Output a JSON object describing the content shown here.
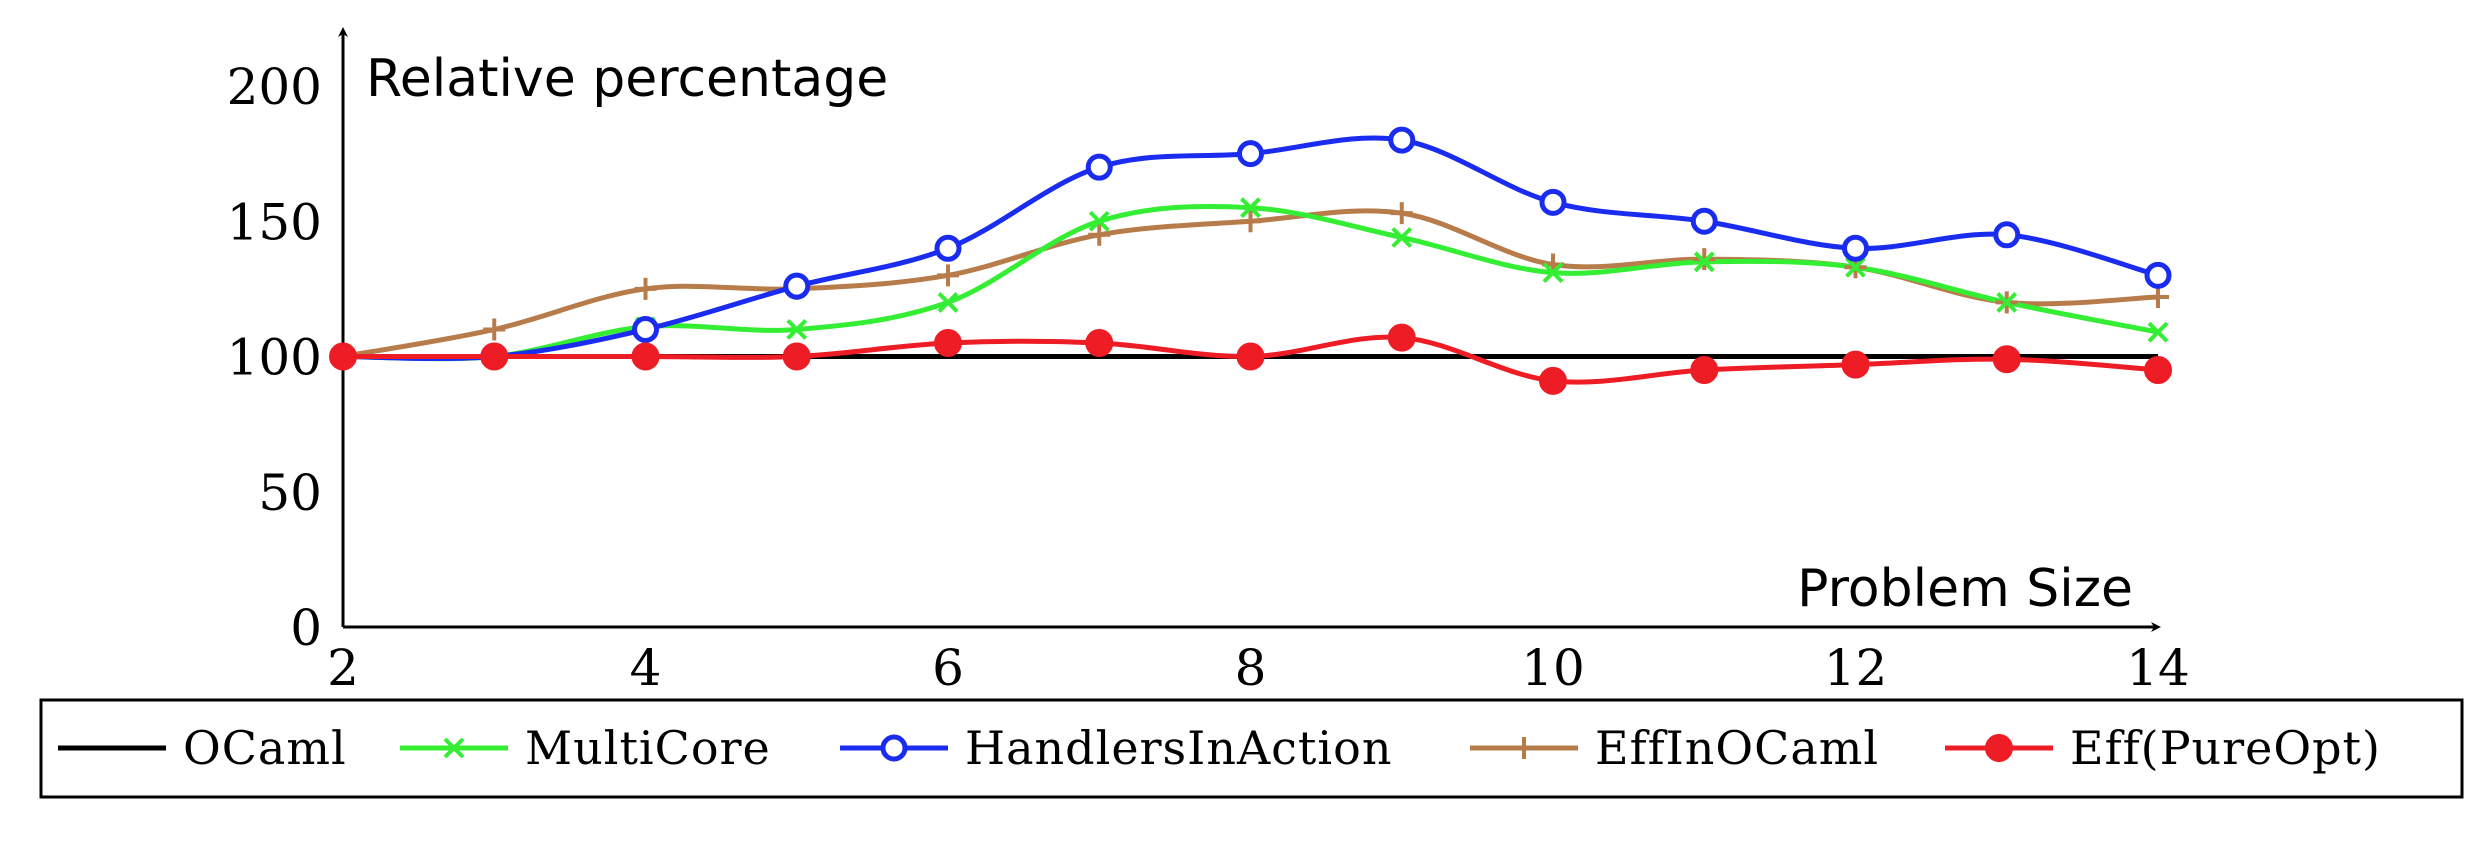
{
  "chart_data": {
    "type": "line",
    "xlabel": "Problem Size",
    "ylabel": "Relative percentage",
    "xlim": [
      2,
      14
    ],
    "ylim": [
      0,
      200
    ],
    "x_ticks": [
      "2",
      "4",
      "6",
      "8",
      "10",
      "12",
      "14"
    ],
    "y_ticks": [
      "0",
      "50",
      "100",
      "150",
      "200"
    ],
    "legend_position": "bottom",
    "series": [
      {
        "name": "OCaml",
        "color": "#000000",
        "marker": "none",
        "x": [
          2,
          3,
          4,
          5,
          6,
          7,
          8,
          9,
          10,
          11,
          12,
          13,
          14
        ],
        "values": [
          100,
          100,
          100,
          100,
          100,
          100,
          100,
          100,
          100,
          100,
          100,
          100,
          100
        ]
      },
      {
        "name": "MultiCore",
        "color": "#33ee33",
        "marker": "x",
        "x": [
          2,
          3,
          4,
          5,
          6,
          7,
          8,
          9,
          10,
          11,
          12,
          13,
          14
        ],
        "values": [
          100,
          100,
          111,
          110,
          120,
          150,
          155,
          144,
          131,
          135,
          133,
          120,
          109
        ]
      },
      {
        "name": "HandlersInAction",
        "color": "#1a2cf0",
        "marker": "circle-open",
        "x": [
          2,
          3,
          4,
          5,
          6,
          7,
          8,
          9,
          10,
          11,
          12,
          13,
          14
        ],
        "values": [
          100,
          100,
          110,
          126,
          140,
          170,
          175,
          180,
          157,
          150,
          140,
          145,
          130
        ]
      },
      {
        "name": "EffInOCaml",
        "color": "#b87c4b",
        "marker": "plus",
        "x": [
          2,
          3,
          4,
          5,
          6,
          7,
          8,
          9,
          10,
          11,
          12,
          13,
          14
        ],
        "values": [
          100,
          110,
          125,
          125,
          130,
          145,
          150,
          153,
          134,
          136,
          133,
          120,
          122
        ]
      },
      {
        "name": "Eff(PureOpt)",
        "color": "#ee1c25",
        "marker": "circle-filled",
        "x": [
          2,
          3,
          4,
          5,
          6,
          7,
          8,
          9,
          10,
          11,
          12,
          13,
          14
        ],
        "values": [
          100,
          100,
          100,
          100,
          105,
          105,
          100,
          107,
          91,
          95,
          97,
          99,
          95
        ]
      }
    ]
  }
}
